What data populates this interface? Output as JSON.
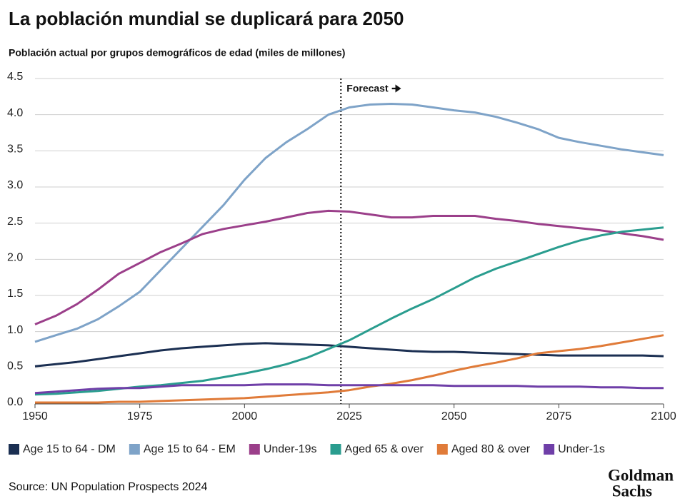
{
  "chart_data": {
    "type": "line",
    "title": "La población mundial se duplicará para 2050",
    "subtitle": "Población actual por grupos demográficos de edad (miles de millones)",
    "annotation": "Forecast",
    "forecast_x": 2023,
    "source": "Source: UN Population Prospects 2024",
    "logo": [
      "Goldman",
      "Sachs"
    ],
    "x": [
      1950,
      1955,
      1960,
      1965,
      1970,
      1975,
      1980,
      1985,
      1990,
      1995,
      2000,
      2005,
      2010,
      2015,
      2020,
      2025,
      2030,
      2035,
      2040,
      2045,
      2050,
      2055,
      2060,
      2065,
      2070,
      2075,
      2080,
      2085,
      2090,
      2095,
      2100
    ],
    "xlim": [
      1950,
      2100
    ],
    "xticks": [
      1950,
      1975,
      2000,
      2025,
      2050,
      2075,
      2100
    ],
    "ylim": [
      0,
      4.5
    ],
    "yticks": [
      {
        "value": 0,
        "label": "0.0"
      },
      0.5,
      {
        "value": 1,
        "label": "1.0"
      },
      1.5,
      {
        "value": 2,
        "label": "2.0"
      },
      2.5,
      {
        "value": 3,
        "label": "3.0"
      },
      3.5,
      {
        "value": 4,
        "label": "4.0"
      },
      4.5
    ],
    "grid": true,
    "series": [
      {
        "name": "Age 15 to 64 - DM",
        "color": "#1b2f52",
        "values": [
          0.52,
          0.55,
          0.58,
          0.62,
          0.66,
          0.7,
          0.74,
          0.77,
          0.79,
          0.81,
          0.83,
          0.84,
          0.83,
          0.82,
          0.81,
          0.79,
          0.77,
          0.75,
          0.73,
          0.72,
          0.72,
          0.71,
          0.7,
          0.69,
          0.68,
          0.67,
          0.67,
          0.67,
          0.67,
          0.67,
          0.66
        ]
      },
      {
        "name": "Age 15 to 64 - EM",
        "color": "#7ea3c8",
        "values": [
          0.86,
          0.95,
          1.04,
          1.17,
          1.35,
          1.55,
          1.85,
          2.15,
          2.45,
          2.75,
          3.1,
          3.4,
          3.62,
          3.8,
          4.0,
          4.1,
          4.14,
          4.15,
          4.14,
          4.1,
          4.06,
          4.03,
          3.97,
          3.89,
          3.8,
          3.68,
          3.62,
          3.57,
          3.52,
          3.48,
          3.44
        ]
      },
      {
        "name": "Under-19s",
        "color": "#9b3f8a",
        "values": [
          1.1,
          1.22,
          1.38,
          1.58,
          1.8,
          1.95,
          2.1,
          2.22,
          2.35,
          2.42,
          2.47,
          2.52,
          2.58,
          2.64,
          2.67,
          2.66,
          2.62,
          2.58,
          2.58,
          2.6,
          2.6,
          2.6,
          2.56,
          2.53,
          2.49,
          2.46,
          2.43,
          2.4,
          2.36,
          2.32,
          2.27
        ]
      },
      {
        "name": "Aged 65 & over",
        "color": "#2a9d8f",
        "values": [
          0.13,
          0.14,
          0.16,
          0.18,
          0.21,
          0.24,
          0.26,
          0.29,
          0.32,
          0.37,
          0.42,
          0.48,
          0.55,
          0.64,
          0.76,
          0.88,
          1.03,
          1.18,
          1.32,
          1.45,
          1.6,
          1.75,
          1.87,
          1.97,
          2.07,
          2.17,
          2.26,
          2.33,
          2.38,
          2.41,
          2.44
        ]
      },
      {
        "name": "Aged 80 & over",
        "color": "#e07b39",
        "values": [
          0.02,
          0.02,
          0.02,
          0.02,
          0.03,
          0.03,
          0.04,
          0.05,
          0.06,
          0.07,
          0.08,
          0.1,
          0.12,
          0.14,
          0.16,
          0.19,
          0.24,
          0.28,
          0.33,
          0.39,
          0.46,
          0.52,
          0.57,
          0.63,
          0.7,
          0.73,
          0.76,
          0.8,
          0.85,
          0.9,
          0.95
        ]
      },
      {
        "name": "Under-1s",
        "color": "#6f3fa8",
        "values": [
          0.15,
          0.17,
          0.19,
          0.21,
          0.22,
          0.22,
          0.24,
          0.26,
          0.26,
          0.26,
          0.26,
          0.27,
          0.27,
          0.27,
          0.26,
          0.26,
          0.26,
          0.26,
          0.26,
          0.26,
          0.25,
          0.25,
          0.25,
          0.25,
          0.24,
          0.24,
          0.24,
          0.23,
          0.23,
          0.22,
          0.22
        ]
      }
    ]
  }
}
